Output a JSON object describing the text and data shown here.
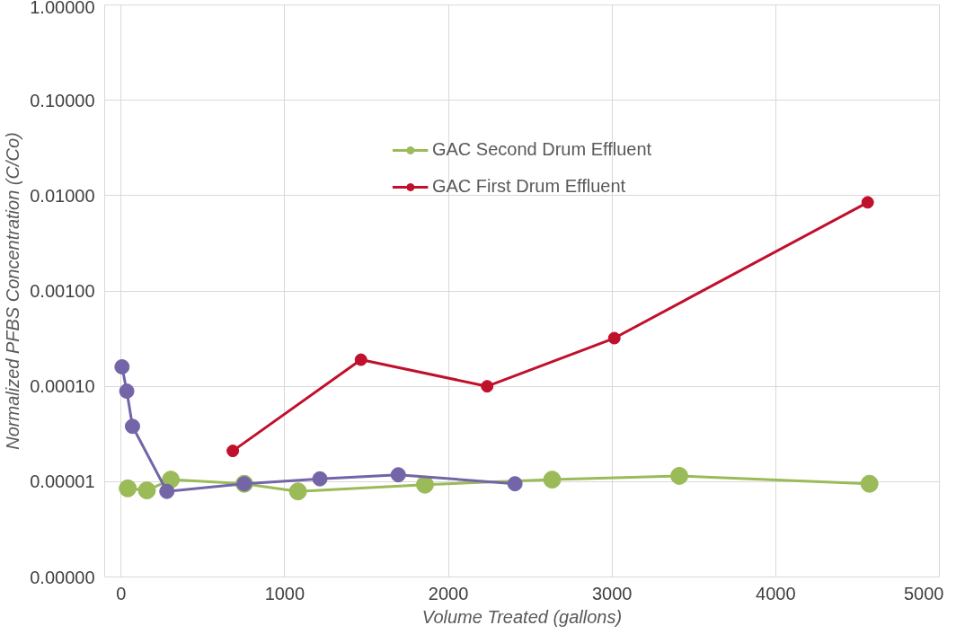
{
  "chart_data": {
    "type": "line",
    "xlabel": "Volume Treated (gallons)",
    "ylabel": "Normalized PFBS Concentration (C/Co)",
    "log": "y",
    "grid": true,
    "legend": "top",
    "marker": "circle",
    "line_style": "solid",
    "xlim": [
      -100,
      5000
    ],
    "xticks": [
      0,
      1000,
      2000,
      3000,
      4000,
      5000
    ],
    "ylim": [
      1e-06,
      1
    ],
    "yticks": [
      {
        "value": 1e-06,
        "label": "0.00000"
      },
      {
        "value": 1e-05,
        "label": "0.00001"
      },
      {
        "value": 0.0001,
        "label": "0.00010"
      },
      {
        "value": 0.001,
        "label": "0.00100"
      },
      {
        "value": 0.01,
        "label": "0.01000"
      },
      {
        "value": 0.1,
        "label": "0.10000"
      },
      {
        "value": 1,
        "label": "1.00000"
      }
    ],
    "series": [
      {
        "name": "GAC Second Drum Effluent",
        "color": "#9bbb59",
        "x": [
          41,
          158,
          304,
          753,
          1081,
          1857,
          2634,
          3411,
          4573
        ],
        "values": [
          8.5e-06,
          8.1e-06,
          1.05e-05,
          9.5e-06,
          7.9e-06,
          9.3e-06,
          1.05e-05,
          1.15e-05,
          9.5e-06
        ]
      },
      {
        "color": "#7464a8",
        "x": [
          6,
          35,
          70,
          280,
          753,
          1215,
          1694,
          2407
        ],
        "values": [
          0.00016,
          8.9e-05,
          3.8e-05,
          7.9e-06,
          9.5e-06,
          1.07e-05,
          1.18e-05,
          9.5e-06
        ]
      },
      {
        "name": "GAC First Drum Effluent",
        "color": "#c0102c",
        "x": [
          683,
          1466,
          2237,
          3014,
          4562
        ],
        "values": [
          2.1e-05,
          0.00019,
          0.0001,
          0.00032,
          0.0085
        ]
      }
    ]
  }
}
